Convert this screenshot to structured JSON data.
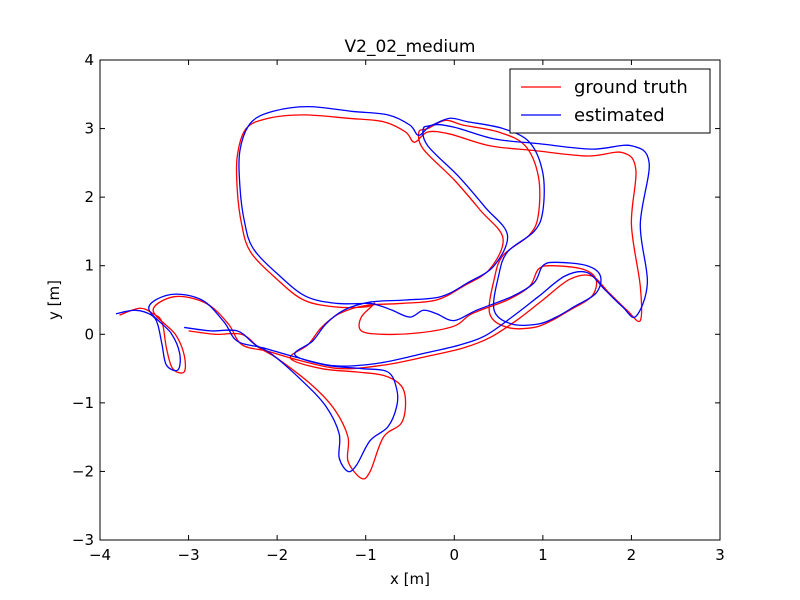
{
  "chart_data": {
    "type": "line",
    "title": "V2_02_medium",
    "xlabel": "x [m]",
    "ylabel": "y [m]",
    "xlim": [
      -4,
      3
    ],
    "ylim": [
      -3,
      4
    ],
    "xticks": [
      -4,
      -3,
      -2,
      -1,
      0,
      1,
      2,
      3
    ],
    "yticks": [
      -3,
      -2,
      -1,
      0,
      1,
      2,
      3,
      4
    ],
    "xtick_labels": [
      "−4",
      "−3",
      "−2",
      "−1",
      "0",
      "1",
      "2",
      "3"
    ],
    "ytick_labels": [
      "−3",
      "−2",
      "−1",
      "0",
      "1",
      "2",
      "3",
      "4"
    ],
    "grid": false,
    "legend": {
      "position": "top-right",
      "entries": [
        "ground truth",
        "estimated"
      ]
    },
    "series": [
      {
        "name": "ground truth",
        "color": "#ff0000",
        "points": [
          [
            -3.78,
            0.28
          ],
          [
            -3.55,
            0.38
          ],
          [
            -3.4,
            0.3
          ],
          [
            -3.3,
            0.18
          ],
          [
            -3.25,
            -0.2
          ],
          [
            -3.18,
            -0.5
          ],
          [
            -3.05,
            -0.55
          ],
          [
            -3.05,
            -0.3
          ],
          [
            -3.15,
            0.0
          ],
          [
            -3.4,
            0.35
          ],
          [
            -3.15,
            0.55
          ],
          [
            -2.8,
            0.45
          ],
          [
            -2.55,
            0.15
          ],
          [
            -2.4,
            -0.15
          ],
          [
            -2.1,
            -0.25
          ],
          [
            -1.75,
            -0.38
          ],
          [
            -1.3,
            -0.5
          ],
          [
            -0.8,
            -0.45
          ],
          [
            -0.3,
            -0.32
          ],
          [
            0.1,
            -0.2
          ],
          [
            0.4,
            -0.05
          ],
          [
            0.7,
            0.2
          ],
          [
            1.0,
            0.5
          ],
          [
            1.3,
            0.8
          ],
          [
            1.55,
            0.85
          ],
          [
            1.75,
            0.6
          ],
          [
            1.95,
            0.35
          ],
          [
            2.1,
            0.2
          ],
          [
            2.1,
            0.7
          ],
          [
            2.0,
            1.6
          ],
          [
            2.05,
            2.4
          ],
          [
            1.9,
            2.65
          ],
          [
            1.5,
            2.6
          ],
          [
            0.9,
            2.68
          ],
          [
            0.4,
            2.75
          ],
          [
            -0.05,
            2.92
          ],
          [
            -0.3,
            2.95
          ],
          [
            -0.45,
            2.8
          ],
          [
            -0.55,
            2.95
          ],
          [
            -0.8,
            3.1
          ],
          [
            -1.2,
            3.15
          ],
          [
            -1.7,
            3.2
          ],
          [
            -2.1,
            3.15
          ],
          [
            -2.35,
            3.0
          ],
          [
            -2.45,
            2.6
          ],
          [
            -2.45,
            2.1
          ],
          [
            -2.4,
            1.6
          ],
          [
            -2.3,
            1.2
          ],
          [
            -2.0,
            0.8
          ],
          [
            -1.7,
            0.5
          ],
          [
            -1.35,
            0.4
          ],
          [
            -1.0,
            0.4
          ],
          [
            -0.9,
            0.45
          ],
          [
            -1.05,
            0.25
          ],
          [
            -1.05,
            0.05
          ],
          [
            -0.8,
            0.0
          ],
          [
            -0.4,
            0.02
          ],
          [
            0.0,
            0.12
          ],
          [
            0.2,
            0.3
          ],
          [
            0.6,
            0.5
          ],
          [
            0.85,
            0.7
          ],
          [
            0.95,
            0.95
          ],
          [
            1.1,
            1.0
          ],
          [
            1.45,
            0.95
          ],
          [
            1.6,
            0.8
          ],
          [
            1.55,
            0.55
          ],
          [
            1.3,
            0.35
          ],
          [
            1.1,
            0.2
          ],
          [
            0.9,
            0.1
          ],
          [
            0.6,
            0.1
          ],
          [
            0.4,
            0.3
          ],
          [
            0.45,
            0.8
          ],
          [
            0.55,
            1.15
          ],
          [
            0.85,
            1.45
          ],
          [
            0.95,
            1.75
          ],
          [
            0.95,
            2.3
          ],
          [
            0.8,
            2.75
          ],
          [
            0.5,
            2.95
          ],
          [
            0.1,
            3.05
          ],
          [
            -0.1,
            3.12
          ],
          [
            -0.3,
            3.0
          ],
          [
            -0.4,
            2.95
          ],
          [
            -0.35,
            2.7
          ],
          [
            0.0,
            2.25
          ],
          [
            0.3,
            1.8
          ],
          [
            0.55,
            1.4
          ],
          [
            0.4,
            0.95
          ],
          [
            0.1,
            0.7
          ],
          [
            -0.2,
            0.5
          ],
          [
            -0.6,
            0.45
          ],
          [
            -1.0,
            0.42
          ],
          [
            -1.3,
            0.3
          ],
          [
            -1.5,
            0.1
          ],
          [
            -1.65,
            -0.15
          ],
          [
            -1.85,
            -0.35
          ],
          [
            -1.5,
            -0.5
          ],
          [
            -1.1,
            -0.55
          ],
          [
            -0.8,
            -0.6
          ],
          [
            -0.6,
            -0.75
          ],
          [
            -0.55,
            -1.0
          ],
          [
            -0.6,
            -1.3
          ],
          [
            -0.8,
            -1.5
          ],
          [
            -0.95,
            -2.0
          ],
          [
            -1.05,
            -2.1
          ],
          [
            -1.2,
            -1.85
          ],
          [
            -1.2,
            -1.5
          ],
          [
            -1.35,
            -1.1
          ],
          [
            -1.6,
            -0.75
          ],
          [
            -2.0,
            -0.35
          ],
          [
            -2.2,
            -0.2
          ],
          [
            -2.4,
            0.0
          ],
          [
            -2.7,
            0.0
          ],
          [
            -3.0,
            0.05
          ]
        ]
      },
      {
        "name": "estimated",
        "color": "#0000ff",
        "points": [
          [
            -3.82,
            0.3
          ],
          [
            -3.6,
            0.35
          ],
          [
            -3.42,
            0.28
          ],
          [
            -3.35,
            0.15
          ],
          [
            -3.3,
            -0.15
          ],
          [
            -3.25,
            -0.45
          ],
          [
            -3.12,
            -0.52
          ],
          [
            -3.1,
            -0.28
          ],
          [
            -3.2,
            0.02
          ],
          [
            -3.45,
            0.38
          ],
          [
            -3.2,
            0.58
          ],
          [
            -2.85,
            0.5
          ],
          [
            -2.6,
            0.18
          ],
          [
            -2.45,
            -0.1
          ],
          [
            -2.15,
            -0.2
          ],
          [
            -1.8,
            -0.33
          ],
          [
            -1.35,
            -0.46
          ],
          [
            -0.85,
            -0.42
          ],
          [
            -0.35,
            -0.28
          ],
          [
            0.05,
            -0.16
          ],
          [
            0.35,
            -0.02
          ],
          [
            0.65,
            0.25
          ],
          [
            0.95,
            0.55
          ],
          [
            1.25,
            0.85
          ],
          [
            1.5,
            0.9
          ],
          [
            1.7,
            0.65
          ],
          [
            1.9,
            0.4
          ],
          [
            2.05,
            0.26
          ],
          [
            2.18,
            0.75
          ],
          [
            2.1,
            1.6
          ],
          [
            2.2,
            2.5
          ],
          [
            2.0,
            2.75
          ],
          [
            1.55,
            2.7
          ],
          [
            0.95,
            2.78
          ],
          [
            0.45,
            2.85
          ],
          [
            0.0,
            3.02
          ],
          [
            -0.25,
            3.05
          ],
          [
            -0.4,
            2.9
          ],
          [
            -0.5,
            3.05
          ],
          [
            -0.75,
            3.2
          ],
          [
            -1.15,
            3.25
          ],
          [
            -1.65,
            3.32
          ],
          [
            -2.05,
            3.25
          ],
          [
            -2.3,
            3.08
          ],
          [
            -2.42,
            2.68
          ],
          [
            -2.42,
            2.15
          ],
          [
            -2.37,
            1.65
          ],
          [
            -2.27,
            1.25
          ],
          [
            -1.97,
            0.85
          ],
          [
            -1.67,
            0.55
          ],
          [
            -1.32,
            0.45
          ],
          [
            -0.97,
            0.45
          ],
          [
            -0.85,
            0.42
          ],
          [
            -0.7,
            0.35
          ],
          [
            -0.5,
            0.25
          ],
          [
            -0.35,
            0.35
          ],
          [
            -0.2,
            0.3
          ],
          [
            0.0,
            0.2
          ],
          [
            0.25,
            0.35
          ],
          [
            0.65,
            0.55
          ],
          [
            0.9,
            0.75
          ],
          [
            1.0,
            1.0
          ],
          [
            1.15,
            1.05
          ],
          [
            1.5,
            1.0
          ],
          [
            1.65,
            0.85
          ],
          [
            1.6,
            0.6
          ],
          [
            1.35,
            0.4
          ],
          [
            1.15,
            0.25
          ],
          [
            0.95,
            0.15
          ],
          [
            0.65,
            0.15
          ],
          [
            0.45,
            0.35
          ],
          [
            0.5,
            0.85
          ],
          [
            0.6,
            1.2
          ],
          [
            0.9,
            1.5
          ],
          [
            1.0,
            1.8
          ],
          [
            1.0,
            2.35
          ],
          [
            0.85,
            2.8
          ],
          [
            0.55,
            3.0
          ],
          [
            0.15,
            3.1
          ],
          [
            -0.05,
            3.15
          ],
          [
            -0.25,
            3.05
          ],
          [
            -0.35,
            3.0
          ],
          [
            -0.3,
            2.75
          ],
          [
            0.05,
            2.3
          ],
          [
            0.35,
            1.85
          ],
          [
            0.6,
            1.45
          ],
          [
            0.45,
            1.0
          ],
          [
            0.15,
            0.75
          ],
          [
            -0.15,
            0.55
          ],
          [
            -0.55,
            0.5
          ],
          [
            -0.95,
            0.47
          ],
          [
            -1.25,
            0.35
          ],
          [
            -1.45,
            0.15
          ],
          [
            -1.6,
            -0.1
          ],
          [
            -1.8,
            -0.3
          ],
          [
            -1.45,
            -0.45
          ],
          [
            -1.05,
            -0.5
          ],
          [
            -0.75,
            -0.55
          ],
          [
            -0.65,
            -0.8
          ],
          [
            -0.65,
            -1.05
          ],
          [
            -0.75,
            -1.35
          ],
          [
            -0.95,
            -1.55
          ],
          [
            -1.1,
            -1.9
          ],
          [
            -1.2,
            -2.0
          ],
          [
            -1.3,
            -1.8
          ],
          [
            -1.3,
            -1.45
          ],
          [
            -1.45,
            -1.05
          ],
          [
            -1.7,
            -0.7
          ],
          [
            -2.05,
            -0.3
          ],
          [
            -2.25,
            -0.15
          ],
          [
            -2.45,
            0.05
          ],
          [
            -2.75,
            0.05
          ],
          [
            -3.05,
            0.1
          ]
        ]
      }
    ]
  }
}
